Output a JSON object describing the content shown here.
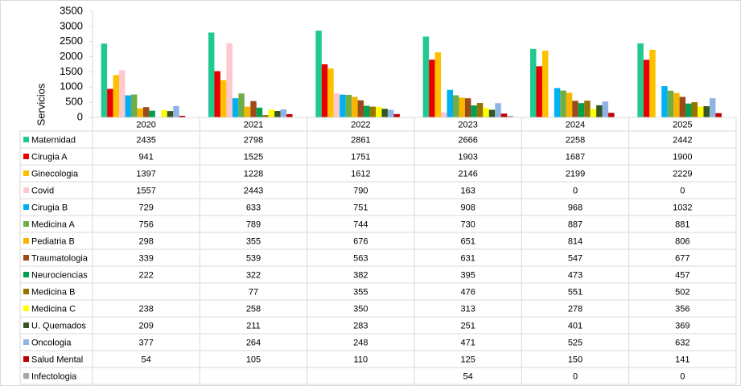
{
  "chart_data": {
    "type": "bar",
    "ylabel": "Servicios",
    "categories": [
      "2020",
      "2021",
      "2022",
      "2023",
      "2024",
      "2025"
    ],
    "ylim": [
      0,
      3500
    ],
    "yticks": [
      0,
      500,
      1000,
      1500,
      2000,
      2500,
      3000,
      3500
    ],
    "grid": false,
    "series": [
      {
        "name": "Maternidad",
        "color": "#1fc98f",
        "values": [
          2435,
          2798,
          2861,
          2666,
          2258,
          2442
        ]
      },
      {
        "name": "Cirugia A",
        "color": "#e60000",
        "values": [
          941,
          1525,
          1751,
          1903,
          1687,
          1900
        ]
      },
      {
        "name": "Ginecologia",
        "color": "#ffc000",
        "values": [
          1397,
          1228,
          1612,
          2146,
          2199,
          2229
        ]
      },
      {
        "name": "Covid",
        "color": "#ffc7ce",
        "values": [
          1557,
          2443,
          790,
          163,
          0,
          0
        ]
      },
      {
        "name": "Cirugia B",
        "color": "#00b0f0",
        "values": [
          729,
          633,
          751,
          908,
          968,
          1032
        ]
      },
      {
        "name": "Medicina A",
        "color": "#70ad47",
        "values": [
          756,
          789,
          744,
          730,
          887,
          881
        ]
      },
      {
        "name": "Pediatria B",
        "color": "#f7b500",
        "values": [
          298,
          355,
          676,
          651,
          814,
          806
        ]
      },
      {
        "name": "Traumatologia",
        "color": "#9c4a1a",
        "values": [
          339,
          539,
          563,
          631,
          547,
          677
        ]
      },
      {
        "name": "Neurociencias",
        "color": "#00a050",
        "values": [
          222,
          322,
          382,
          395,
          473,
          457
        ]
      },
      {
        "name": "Medicina B",
        "color": "#997300",
        "values": [
          null,
          77,
          355,
          476,
          551,
          502
        ]
      },
      {
        "name": "Medicina C",
        "color": "#ffff00",
        "values": [
          238,
          258,
          350,
          313,
          278,
          356
        ]
      },
      {
        "name": "U. Quemados",
        "color": "#375623",
        "values": [
          209,
          211,
          283,
          251,
          401,
          369
        ]
      },
      {
        "name": "Oncologia",
        "color": "#8db4e2",
        "values": [
          377,
          264,
          248,
          471,
          525,
          632
        ]
      },
      {
        "name": "Salud Mental",
        "color": "#c00000",
        "values": [
          54,
          105,
          110,
          125,
          150,
          141
        ]
      },
      {
        "name": "Infectologia",
        "color": "#a6a6a6",
        "values": [
          null,
          null,
          null,
          54,
          0,
          0
        ]
      }
    ]
  }
}
